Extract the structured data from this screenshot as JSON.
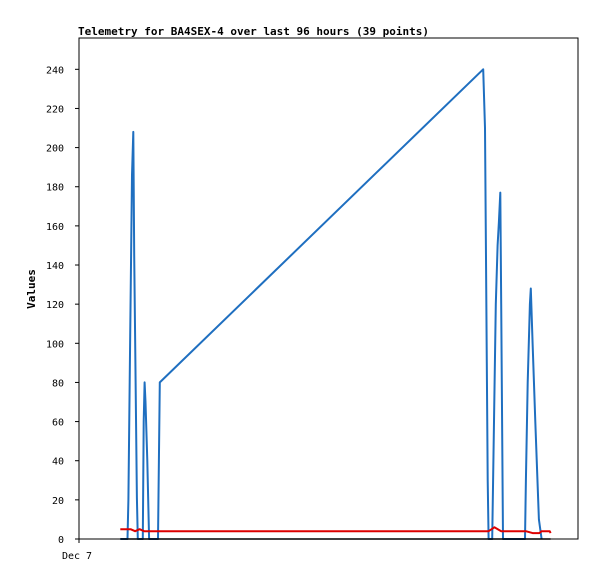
{
  "chart_data": {
    "type": "line",
    "title": "Telemetry for BA4SEX-4 over last 96 hours (39 points)",
    "xlabel": "",
    "ylabel": "Values",
    "x_tick_labels": [
      "Dec 7"
    ],
    "ylim": [
      0,
      256
    ],
    "y_ticks": [
      0,
      20,
      40,
      60,
      80,
      100,
      120,
      140,
      160,
      180,
      200,
      220,
      240
    ],
    "grid": false,
    "legend": "none",
    "series": [
      {
        "color": "#1f6fc0",
        "points": [
          [
            0.092,
            0
          ],
          [
            0.108,
            0
          ],
          [
            0.11,
            20
          ],
          [
            0.112,
            62
          ],
          [
            0.114,
            104
          ],
          [
            0.116,
            145
          ],
          [
            0.118,
            186
          ],
          [
            0.121,
            208
          ],
          [
            0.123,
            145
          ],
          [
            0.125,
            104
          ],
          [
            0.127,
            62
          ],
          [
            0.129,
            21
          ],
          [
            0.131,
            0
          ],
          [
            0.142,
            0
          ],
          [
            0.144,
            60
          ],
          [
            0.146,
            80
          ],
          [
            0.148,
            70
          ],
          [
            0.15,
            55
          ],
          [
            0.152,
            40
          ],
          [
            0.154,
            20
          ],
          [
            0.156,
            0
          ],
          [
            0.176,
            0
          ],
          [
            0.178,
            40
          ],
          [
            0.18,
            80
          ],
          [
            0.9,
            240
          ],
          [
            0.904,
            210
          ],
          [
            0.906,
            150
          ],
          [
            0.908,
            90
          ],
          [
            0.91,
            30
          ],
          [
            0.912,
            0
          ],
          [
            0.92,
            0
          ],
          [
            0.924,
            60
          ],
          [
            0.928,
            120
          ],
          [
            0.932,
            150
          ],
          [
            0.935,
            162
          ],
          [
            0.938,
            177
          ],
          [
            0.94,
            120
          ],
          [
            0.942,
            60
          ],
          [
            0.944,
            0
          ],
          [
            0.993,
            0
          ],
          [
            0.995,
            30
          ],
          [
            0.999,
            80
          ],
          [
            1.004,
            120
          ],
          [
            1.006,
            128
          ],
          [
            1.01,
            100
          ],
          [
            1.016,
            60
          ],
          [
            1.024,
            10
          ],
          [
            1.03,
            0
          ]
        ]
      },
      {
        "color": "#dd0000",
        "points": [
          [
            0.092,
            5
          ],
          [
            0.105,
            5
          ],
          [
            0.115,
            5
          ],
          [
            0.125,
            4
          ],
          [
            0.135,
            5
          ],
          [
            0.145,
            4
          ],
          [
            0.155,
            4
          ],
          [
            0.165,
            4
          ],
          [
            0.912,
            4
          ],
          [
            0.925,
            6
          ],
          [
            0.94,
            4
          ],
          [
            0.995,
            4
          ],
          [
            1.01,
            3
          ],
          [
            1.025,
            3
          ],
          [
            1.03,
            4
          ],
          [
            1.048,
            4
          ],
          [
            1.05,
            3
          ]
        ]
      },
      {
        "color": "#000000",
        "points": [
          [
            0.092,
            0
          ],
          [
            1.05,
            0
          ]
        ]
      }
    ]
  }
}
